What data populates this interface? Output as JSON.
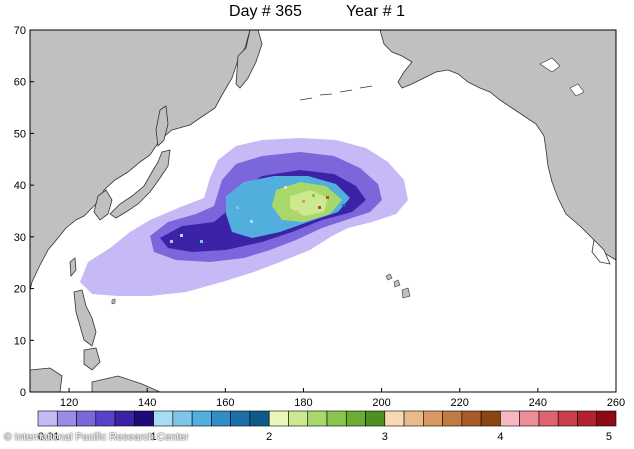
{
  "title": {
    "day": "Day # 365",
    "year": "Year # 1"
  },
  "map": {
    "x_ticks": [
      "120",
      "140",
      "160",
      "180",
      "200",
      "220",
      "240",
      "260"
    ],
    "y_ticks": [
      "0",
      "10",
      "20",
      "30",
      "40",
      "50",
      "60",
      "70"
    ],
    "x_range": [
      110,
      260
    ],
    "y_range": [
      0,
      70
    ]
  },
  "colorbar": {
    "labels": [
      "0.01",
      "1",
      "2",
      "3",
      "4",
      "5"
    ],
    "colors": [
      "#c7b9f5",
      "#9b8be6",
      "#7b66dc",
      "#5a42c8",
      "#3c22a6",
      "#1e0b7a",
      "#a7dcf2",
      "#7cc6ea",
      "#52aedc",
      "#2f8fc5",
      "#1b70a8",
      "#0e5a88",
      "#e9f7b8",
      "#cbe98f",
      "#a9d86a",
      "#8ac64d",
      "#6aad33",
      "#4f8f20",
      "#f7d9b3",
      "#eabb8a",
      "#d89a62",
      "#c37a42",
      "#a85c28",
      "#8a4512",
      "#f7b8bf",
      "#ec8e98",
      "#dd6370",
      "#c9404d",
      "#b0222f",
      "#8e0b16"
    ]
  },
  "colors": {
    "land": "#c0c0c0",
    "ocean": "#ffffff",
    "coast": "#333333"
  },
  "credit": "© International Pacific Research Center"
}
